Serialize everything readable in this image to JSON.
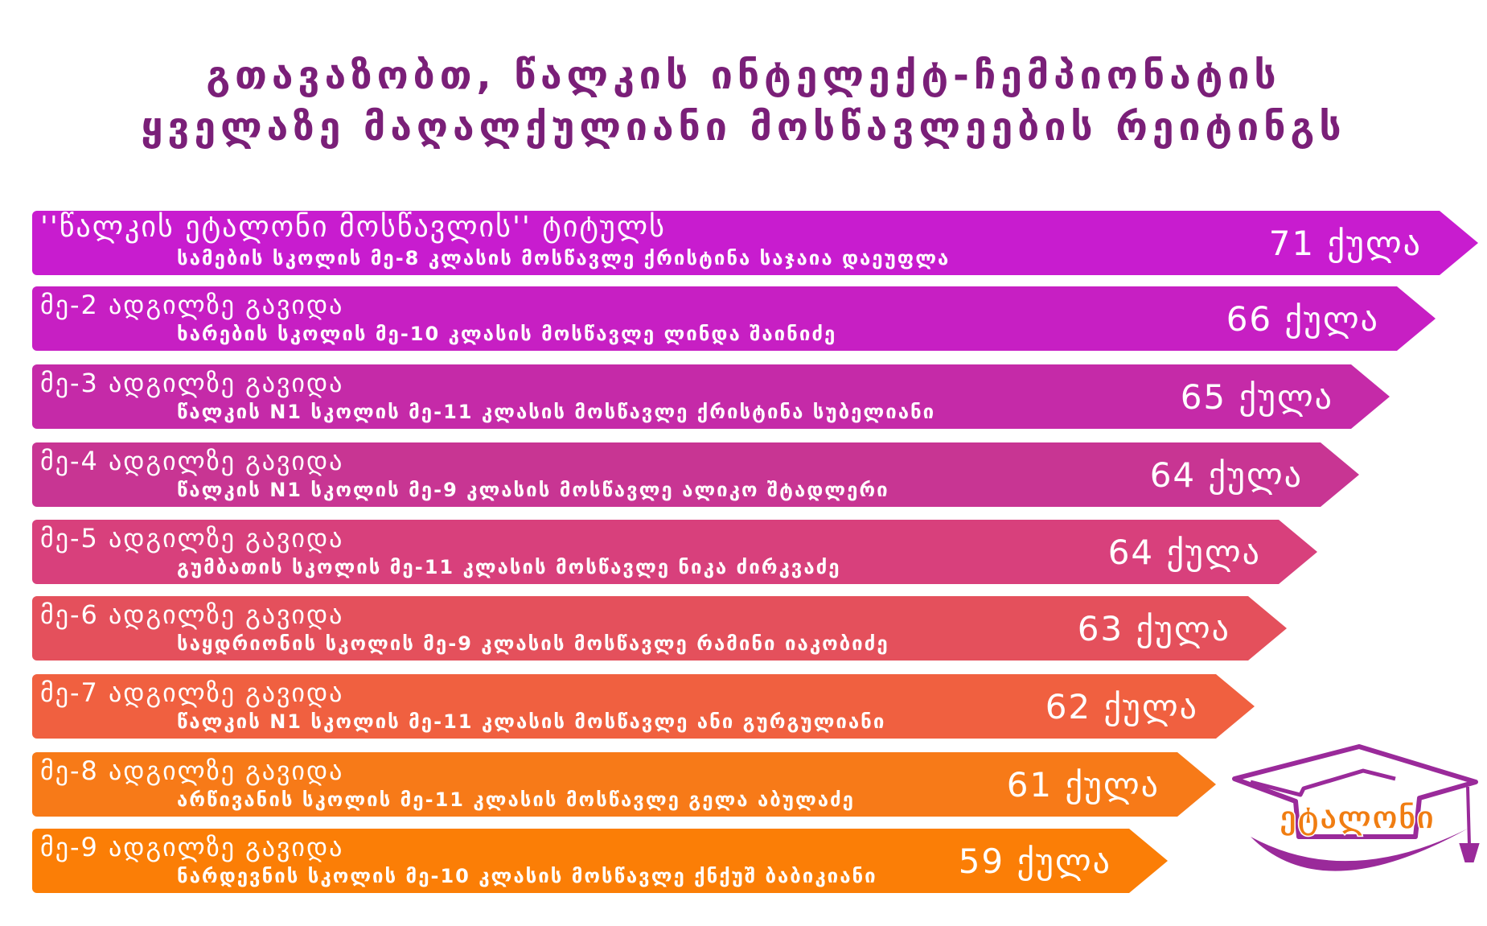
{
  "headline": {
    "line1": "გთავაზობთ, წალკის ინტელექტ-ჩემპიონატის",
    "line2": "ყველაზე მაღალქულიანი მოსწავლეების რეიტინგს"
  },
  "rankings": [
    {
      "place": "''წალკის ეტალონი მოსწავლის'' ტიტულს",
      "student": "სამების სკოლის მე-8 კლასის მოსწავლე ქრისტინა საჯაია დაეუფლა",
      "score": "71 ქულა",
      "color": "#c81ccf"
    },
    {
      "place": "მე-2 ადგილზე გავიდა",
      "student": "ხარების სკოლის მე-10 კლასის მოსწავლე ლინდა შაინიძე",
      "score": "66 ქულა",
      "color": "#c71fc3"
    },
    {
      "place": "მე-3 ადგილზე გავიდა",
      "student": "წალკის N1 სკოლის მე-11 კლასის მოსწავლე ქრისტინა სუბელიანი",
      "score": "65 ქულა",
      "color": "#c52aa8"
    },
    {
      "place": "მე-4 ადგილზე გავიდა",
      "student": "წალკის N1  სკოლის მე-9 კლასის მოსწავლე ალიკო შტადლერი",
      "score": "64 ქულა",
      "color": "#c83593"
    },
    {
      "place": "მე-5 ადგილზე გავიდა",
      "student": "გუმბათის სკოლის მე-11 კლასის მოსწავლე ნიკა ძირკვაძე",
      "score": "64 ქულა",
      "color": "#d8407c"
    },
    {
      "place": "მე-6 ადგილზე გავიდა",
      "student": "საყდრიონის სკოლის მე-9 კლასის მოსწავლე რამინი იაკობიძე",
      "score": "63 ქულა",
      "color": "#e4505c"
    },
    {
      "place": "მე-7 ადგილზე გავიდა",
      "student": "წალკის N1 სკოლის მე-11 კლასის მოსწავლე ანი გურგულიანი",
      "score": "62 ქულა",
      "color": "#f06040"
    },
    {
      "place": "მე-8 ადგილზე გავიდა",
      "student": "არწივანის სკოლის მე-11 კლასის მოსწავლე გელა აბულაძე",
      "score": "61 ქულა",
      "color": "#f77a18"
    },
    {
      "place": "მე-9 ადგილზე გავიდა",
      "student": "ნარდევნის სკოლის მე-10 კლასის მოსწავლე ქნქუშ ბაბიკიანი",
      "score": "59 ქულა",
      "color": "#fb7e06"
    }
  ],
  "logo": {
    "text": "ეტალონი",
    "icon": "graduation-cap-icon",
    "cap_color": "#9a2a9a",
    "text_color": "#f07d12"
  }
}
